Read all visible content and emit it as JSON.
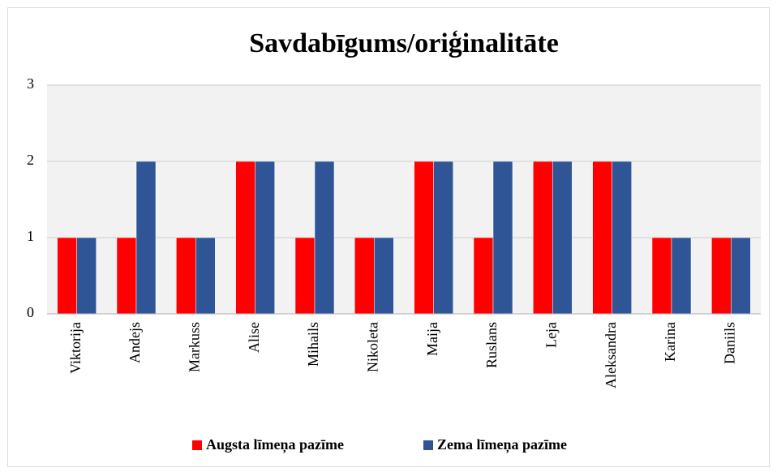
{
  "chart_data": {
    "type": "bar",
    "title": "Savdabīgums/oriģinalitāte",
    "categories": [
      "Viktorija",
      "Andejs",
      "Markuss",
      "Alise",
      "Mihails",
      "Nikoleta",
      "Maija",
      "Ruslans",
      "Leja",
      "Aleksandra",
      "Karina",
      "Daniils"
    ],
    "series": [
      {
        "name": "Augsta līmeņa pazīme",
        "color": "#ff0000",
        "values": [
          1,
          1,
          1,
          2,
          1,
          1,
          2,
          1,
          2,
          2,
          1,
          1
        ]
      },
      {
        "name": "Zema līmeņa pazīme",
        "color": "#2f5597",
        "values": [
          1,
          2,
          1,
          2,
          2,
          1,
          2,
          2,
          2,
          2,
          1,
          1
        ]
      }
    ],
    "ylim": [
      0,
      3
    ],
    "yticks": [
      0,
      1,
      2,
      3
    ],
    "grid": true,
    "legend": "bottom"
  }
}
